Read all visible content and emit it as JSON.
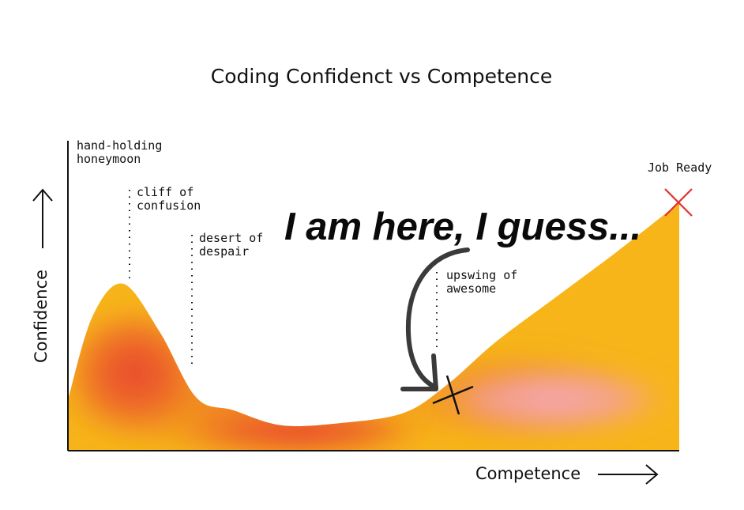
{
  "chart_data": {
    "type": "area",
    "title": "Coding Confidenct vs Competence",
    "xlabel": "Competence",
    "ylabel": "Confidence",
    "x_range": [
      0,
      100
    ],
    "y_range": [
      0,
      100
    ],
    "series": [
      {
        "x": [
          0,
          4,
          9,
          15,
          21,
          27,
          35,
          45,
          55,
          62,
          70,
          80,
          90,
          100
        ],
        "y": [
          20,
          53,
          66,
          47,
          21,
          16,
          10,
          11,
          15,
          26,
          43,
          61,
          79,
          98
        ]
      }
    ],
    "annotations": [
      {
        "lines": [
          "hand-holding",
          "honeymoon"
        ],
        "x": 9
      },
      {
        "lines": [
          "cliff of",
          "confusion"
        ],
        "x": 10
      },
      {
        "lines": [
          "desert of",
          "despair"
        ],
        "x": 20
      },
      {
        "lines": [
          "upswing of",
          "awesome"
        ],
        "x": 60
      },
      {
        "lines": [
          "Job Ready"
        ],
        "x": 100
      }
    ],
    "callout": "I am here, I guess...",
    "colors": {
      "outer": "#f7b51a",
      "middle": "#ee7d22",
      "core": "#e8412f",
      "pink": "#f6a8b4",
      "job_ready_mark": "#e4302d"
    }
  }
}
